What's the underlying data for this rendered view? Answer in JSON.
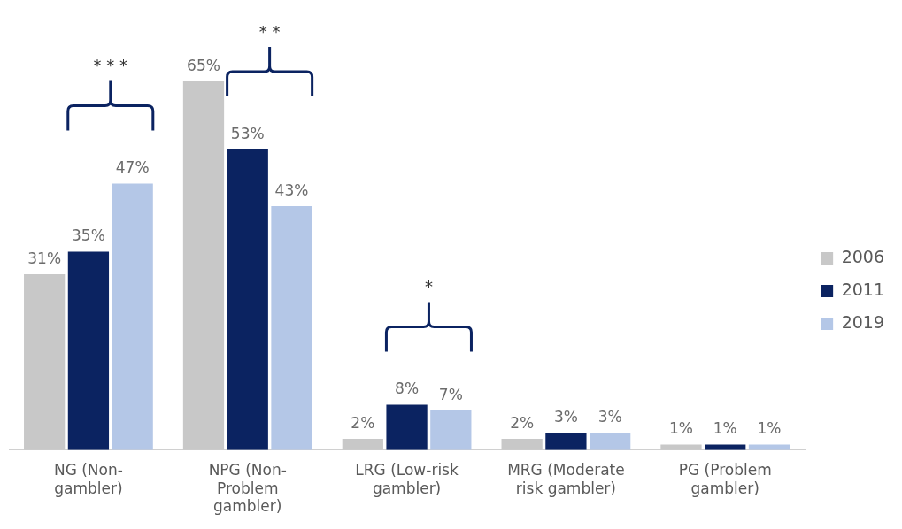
{
  "chart_data": {
    "type": "bar",
    "categories": [
      "NG (Non-gambler)",
      "NPG (Non-Problem gambler)",
      "LRG (Low-risk gambler)",
      "MRG (Moderate risk gambler)",
      "PG (Problem gambler)"
    ],
    "series": [
      {
        "name": "2006",
        "color": "#c8c8c8",
        "values": [
          31,
          65,
          2,
          2,
          1
        ],
        "value_labels": [
          "31%",
          "65%",
          "2%",
          "2%",
          "1%"
        ]
      },
      {
        "name": "2011",
        "color": "#0b2361",
        "values": [
          35,
          53,
          8,
          3,
          1
        ],
        "value_labels": [
          "35%",
          "53%",
          "8%",
          "3%",
          "1%"
        ]
      },
      {
        "name": "2019",
        "color": "#b4c7e7",
        "values": [
          47,
          43,
          7,
          3,
          1
        ],
        "value_labels": [
          "47%",
          "43%",
          "7%",
          "3%",
          "1%"
        ]
      }
    ],
    "annotations": [
      "* * *",
      "* *",
      "*"
    ],
    "legend": "right",
    "grid": false
  }
}
